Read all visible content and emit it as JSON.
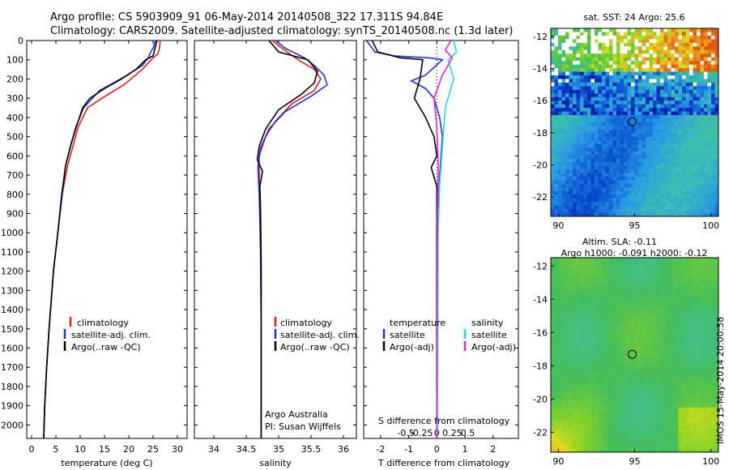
{
  "header": {
    "line1": "Argo profile: CS 5903909_91 06-May-2014 20140508_322 17.311S 94.84E",
    "line2": "Climatology: CARS2009. Satellite-adjusted climatology: synTS_20140508.nc (1.3d later)"
  },
  "side_text": "IMOS 15-May-2014 20:00:58",
  "colors": {
    "climatology": "#e41a1c",
    "satellite": "#1f2fe0",
    "argo": "#000000",
    "sat_salinity": "#22dddd",
    "argo_salinity": "#ee22dd"
  },
  "chart_data": [
    {
      "type": "line",
      "panel": "temperature",
      "xlabel": "temperature (deg C)",
      "xlim": [
        -1,
        32
      ],
      "xticks": [
        0,
        5,
        10,
        15,
        20,
        25,
        30
      ],
      "ylim": [
        2070,
        0
      ],
      "yticks": [
        0,
        100,
        200,
        300,
        400,
        500,
        600,
        700,
        800,
        900,
        1000,
        1100,
        1200,
        1300,
        1400,
        1500,
        1600,
        1700,
        1800,
        1900,
        2000
      ],
      "legend": [
        "climatology",
        "satellite-adj. clim.",
        "Argo(..raw -QC)"
      ],
      "series": [
        {
          "name": "climatology",
          "color": "#e41a1c",
          "points": [
            [
              26.5,
              0
            ],
            [
              26.3,
              40
            ],
            [
              26,
              70
            ],
            [
              25,
              90
            ],
            [
              22.8,
              150
            ],
            [
              19,
              230
            ],
            [
              14.5,
              300
            ],
            [
              11.5,
              350
            ],
            [
              9.6,
              450
            ],
            [
              8.5,
              550
            ],
            [
              7.4,
              650
            ],
            [
              6.3,
              800
            ],
            [
              5.4,
              1000
            ],
            [
              4.5,
              1200
            ],
            [
              3.6,
              1500
            ],
            [
              3.1,
              1700
            ],
            [
              2.7,
              1900
            ],
            [
              2.5,
              2070
            ]
          ]
        },
        {
          "name": "satellite-adj. clim.",
          "color": "#1f2fe0",
          "points": [
            [
              25.5,
              0
            ],
            [
              25,
              40
            ],
            [
              24.5,
              60
            ],
            [
              24,
              90
            ],
            [
              22.8,
              130
            ],
            [
              19,
              190
            ],
            [
              14,
              260
            ],
            [
              10.7,
              350
            ],
            [
              9.1,
              450
            ],
            [
              8,
              550
            ],
            [
              7,
              650
            ],
            [
              6.3,
              800
            ],
            [
              5.4,
              1000
            ],
            [
              4.5,
              1200
            ],
            [
              3.6,
              1500
            ],
            [
              3.1,
              1700
            ],
            [
              2.7,
              1900
            ],
            [
              2.5,
              2070
            ]
          ]
        },
        {
          "name": "Argo(..raw -QC)",
          "color": "#000000",
          "points": [
            [
              25.8,
              0
            ],
            [
              25.4,
              40
            ],
            [
              25,
              80
            ],
            [
              23.5,
              100
            ],
            [
              21.5,
              150
            ],
            [
              18.5,
              200
            ],
            [
              15,
              250
            ],
            [
              12,
              300
            ],
            [
              10.5,
              350
            ],
            [
              9.2,
              450
            ],
            [
              8,
              550
            ],
            [
              7,
              650
            ],
            [
              6.2,
              800
            ],
            [
              5.4,
              1000
            ],
            [
              4.5,
              1200
            ],
            [
              3.6,
              1500
            ],
            [
              3.1,
              1700
            ],
            [
              2.7,
              1900
            ],
            [
              2.5,
              2070
            ]
          ]
        }
      ]
    },
    {
      "type": "line",
      "panel": "salinity",
      "xlabel": "salinity",
      "xlim": [
        33.7,
        36.2
      ],
      "xticks": [
        34,
        34.5,
        35,
        35.5,
        36
      ],
      "ylim": [
        2070,
        0
      ],
      "legend": [
        "climatology",
        "satellite-adj. clim.",
        "Argo(..raw -QC)"
      ],
      "annotation": [
        "Argo Australia",
        "PI: Susan Wijffels"
      ],
      "series": [
        {
          "name": "climatology",
          "color": "#e41a1c",
          "points": [
            [
              34.9,
              0
            ],
            [
              35.05,
              40
            ],
            [
              35.3,
              100
            ],
            [
              35.55,
              150
            ],
            [
              35.65,
              200
            ],
            [
              35.55,
              260
            ],
            [
              35.2,
              330
            ],
            [
              34.95,
              420
            ],
            [
              34.8,
              500
            ],
            [
              34.7,
              600
            ],
            [
              34.7,
              700
            ],
            [
              34.72,
              850
            ],
            [
              34.73,
              1100
            ],
            [
              34.73,
              1500
            ],
            [
              34.73,
              2070
            ]
          ]
        },
        {
          "name": "satellite-adj. clim.",
          "color": "#1f2fe0",
          "points": [
            [
              34.95,
              0
            ],
            [
              35.1,
              40
            ],
            [
              35.4,
              90
            ],
            [
              35.55,
              130
            ],
            [
              35.7,
              180
            ],
            [
              35.75,
              230
            ],
            [
              35.5,
              290
            ],
            [
              35.1,
              370
            ],
            [
              34.85,
              460
            ],
            [
              34.72,
              560
            ],
            [
              34.68,
              660
            ],
            [
              34.7,
              800
            ],
            [
              34.72,
              1100
            ],
            [
              34.73,
              1500
            ],
            [
              34.73,
              2070
            ]
          ]
        },
        {
          "name": "Argo(..raw -QC)",
          "color": "#000000",
          "points": [
            [
              34.85,
              0
            ],
            [
              35.0,
              60
            ],
            [
              35.45,
              100
            ],
            [
              35.6,
              160
            ],
            [
              35.55,
              220
            ],
            [
              35.35,
              280
            ],
            [
              35.0,
              360
            ],
            [
              34.8,
              460
            ],
            [
              34.7,
              550
            ],
            [
              34.67,
              620
            ],
            [
              34.75,
              680
            ],
            [
              34.71,
              760
            ],
            [
              34.72,
              900
            ],
            [
              34.73,
              1200
            ],
            [
              34.73,
              2070
            ]
          ]
        }
      ]
    },
    {
      "type": "line",
      "panel": "difference",
      "xlabel": "T difference from climatology",
      "xlabel_top": "S difference from climatology",
      "xlim": [
        -2.6,
        2.9
      ],
      "xticks": [
        -2,
        -1,
        0,
        1,
        2
      ],
      "xticks_S": [
        -0.5,
        -0.25,
        0,
        0.25,
        0.5
      ],
      "ylim": [
        2070,
        0
      ],
      "legend_T": [
        "temperature",
        "satellite",
        "Argo(-adj)"
      ],
      "legend_S": [
        "salinity",
        "satellite",
        "Argo(-adj)"
      ],
      "series": [
        {
          "name": "satellite",
          "color": "#1f2fe0",
          "points": [
            [
              -2.5,
              0
            ],
            [
              -2.2,
              60
            ],
            [
              -1.5,
              80
            ],
            [
              -0.3,
              90
            ],
            [
              0.2,
              100
            ],
            [
              -0.4,
              180
            ],
            [
              -0.9,
              210
            ],
            [
              -0.4,
              250
            ],
            [
              -0.1,
              300
            ],
            [
              0.1,
              400
            ],
            [
              0.2,
              500
            ],
            [
              0.1,
              700
            ],
            [
              0.05,
              900
            ],
            [
              0,
              1200
            ],
            [
              0,
              2070
            ]
          ]
        },
        {
          "name": "Argo(-adj)",
          "color": "#000000",
          "points": [
            [
              -2.3,
              0
            ],
            [
              -2.1,
              60
            ],
            [
              -1.3,
              90
            ],
            [
              -0.5,
              100
            ],
            [
              -0.6,
              200
            ],
            [
              -0.8,
              300
            ],
            [
              -0.4,
              400
            ],
            [
              -0.1,
              500
            ],
            [
              0,
              600
            ],
            [
              -0.2,
              660
            ],
            [
              0,
              760
            ],
            [
              0,
              900
            ],
            [
              0,
              1200
            ],
            [
              0,
              2070
            ]
          ]
        },
        {
          "name": "sat salinity",
          "color": "#22dddd",
          "points": [
            [
              0.6,
              0
            ],
            [
              0.7,
              60
            ],
            [
              0.4,
              100
            ],
            [
              0.6,
              200
            ],
            [
              0.3,
              350
            ],
            [
              0.2,
              550
            ],
            [
              0.1,
              750
            ],
            [
              0.05,
              1000
            ],
            [
              0.02,
              2070
            ]
          ]
        },
        {
          "name": "Argo(-adj) salinity",
          "color": "#ee22dd",
          "points": [
            [
              0.5,
              0
            ],
            [
              0.3,
              50
            ],
            [
              0.55,
              90
            ],
            [
              0.2,
              180
            ],
            [
              -0.1,
              300
            ],
            [
              0,
              450
            ],
            [
              0.05,
              650
            ],
            [
              0.02,
              900
            ],
            [
              0,
              2070
            ]
          ]
        }
      ]
    },
    {
      "type": "heatmap",
      "panel": "sst-map",
      "title": "sat. SST: 24  Argo: 25.6",
      "xlim": [
        89.5,
        100.5
      ],
      "ylim": [
        -23.2,
        -11.5
      ],
      "xticks": [
        90,
        95,
        100
      ],
      "yticks": [
        -12,
        -14,
        -16,
        -18,
        -20,
        -22
      ],
      "marker": [
        94.84,
        -17.311
      ]
    },
    {
      "type": "heatmap",
      "panel": "sla-map",
      "title": "Altim. SLA: -0.11",
      "subtitle": "Argo h1000: -0.091  h2000: -0.12",
      "xlim": [
        89.5,
        100.5
      ],
      "ylim": [
        -23.2,
        -11.5
      ],
      "xticks": [
        90,
        95,
        100
      ],
      "yticks": [
        -12,
        -14,
        -16,
        -18,
        -20,
        -22
      ],
      "marker": [
        94.84,
        -17.311
      ]
    }
  ]
}
